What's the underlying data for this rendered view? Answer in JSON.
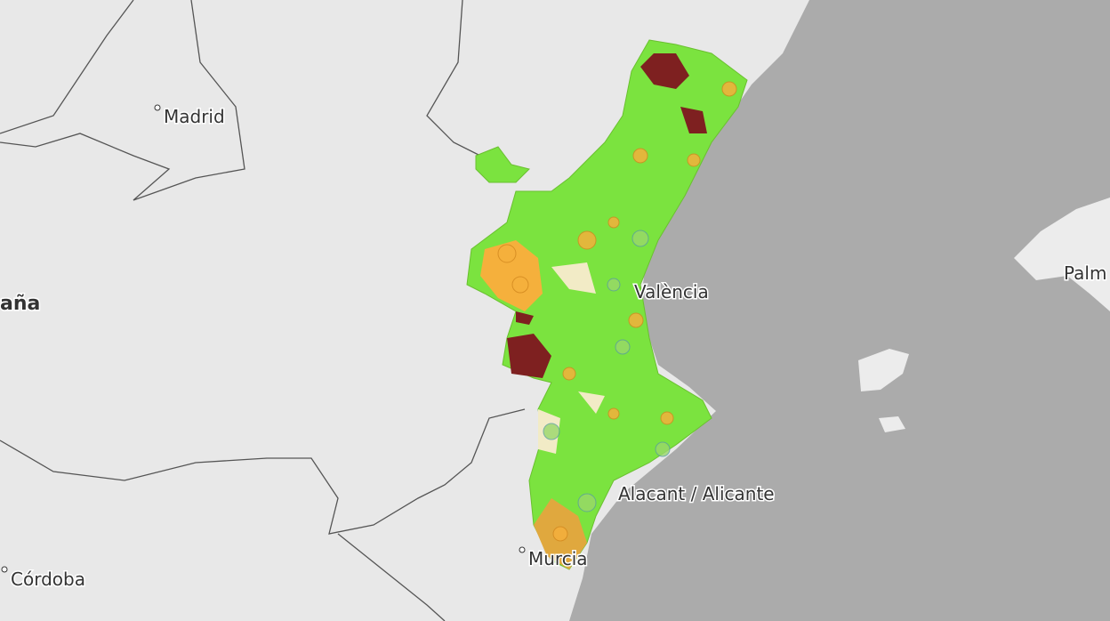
{
  "map": {
    "labels": [
      "Madrid",
      "aña",
      "València",
      "Palm",
      "Alacant / Alicante",
      "Murcia",
      "Córdoba"
    ]
  }
}
